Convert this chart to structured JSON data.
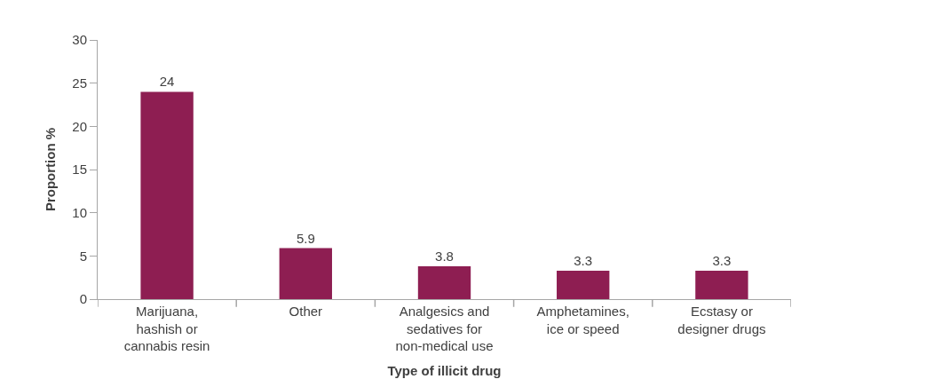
{
  "chart_data": {
    "type": "bar",
    "xlabel": "Type of illicit drug",
    "ylabel": "Proportion %",
    "categories": [
      "Marijuana, hashish or cannabis resin",
      "Other",
      "Analgesics and sedatives for non-medical use",
      "Amphetamines, ice or speed",
      "Ecstasy or designer drugs"
    ],
    "values": [
      24,
      5.9,
      3.8,
      3.3,
      3.3
    ],
    "color": "#8e1e52",
    "ylim": [
      0,
      30
    ],
    "yticks": [
      0,
      5,
      10,
      15,
      20,
      25,
      30
    ],
    "legend": false,
    "data_labels": true
  }
}
